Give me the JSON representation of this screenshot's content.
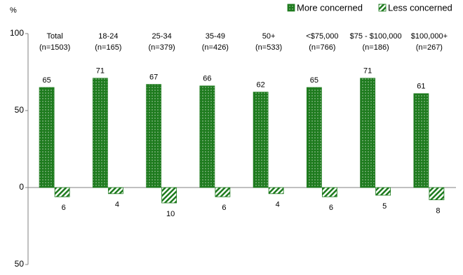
{
  "chart_data": {
    "type": "bar",
    "y_label": "%",
    "categories": [
      "Total",
      "18-24",
      "25-34",
      "35-49",
      "50+",
      "<$75,000",
      "$75 - $100,000",
      "$100,000+"
    ],
    "category_sizes": [
      "(n=1503)",
      "(n=165)",
      "(n=379)",
      "(n=426)",
      "(n=533)",
      "(n=766)",
      "(n=186)",
      "(n=267)"
    ],
    "series": [
      {
        "name": "More concerned",
        "color": "#1e7b1e",
        "pattern": "dots",
        "values": [
          65,
          71,
          67,
          66,
          62,
          65,
          71,
          61
        ]
      },
      {
        "name": "Less concerned",
        "color": "#1e7b1e",
        "pattern": "hatch",
        "values": [
          -6,
          -4,
          -10,
          -6,
          -4,
          -6,
          -5,
          -8
        ],
        "value_labels": [
          "6",
          "4",
          "10",
          "6",
          "4",
          "6",
          "5",
          "8"
        ]
      }
    ],
    "ylim": [
      -50,
      100
    ],
    "yticks": [
      {
        "value": -50,
        "label": "50"
      },
      0,
      50,
      100
    ],
    "grid": false,
    "legend": "top-right"
  }
}
